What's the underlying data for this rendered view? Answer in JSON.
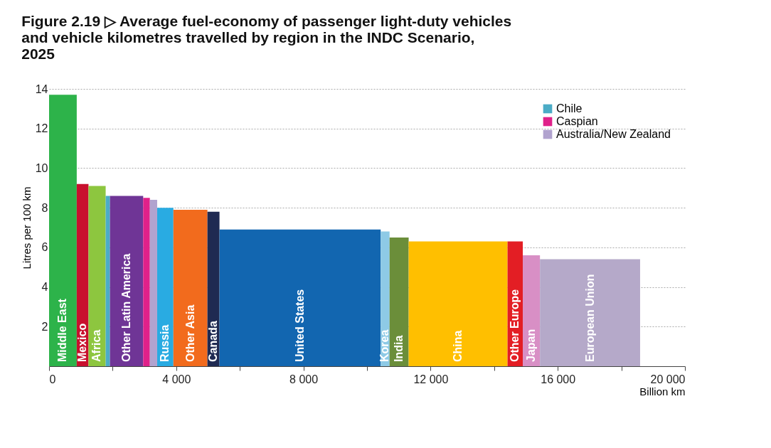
{
  "chart_data": {
    "type": "histogram",
    "title": "Figure 2.19 ▷ Average fuel-economy of passenger light-duty vehicles and vehicle kilometres travelled by region in the INDC Scenario, 2025",
    "xlabel": "Billion km",
    "ylabel": "Litres per 100 km",
    "categories": [
      "Middle East",
      "Mexico",
      "Africa",
      null,
      "Other Latin America",
      null,
      null,
      "Russia",
      "Other Asia",
      "Canada",
      "United States",
      "Korea",
      "India",
      "China",
      "Other Europe",
      "Japan",
      "European Union"
    ],
    "bins": [
      0,
      870,
      1240,
      1780,
      1910,
      2960,
      3170,
      3400,
      3910,
      4980,
      5360,
      10430,
      10710,
      11310,
      14420,
      14900,
      15440,
      18590
    ],
    "series": [
      {
        "colors": [
          "#2db34a",
          "#c8102e",
          "#8dc63f",
          null,
          "#6f3596",
          null,
          null,
          "#29abe2",
          "#f26b1d",
          "#1f2a52",
          "#1266b0",
          "#8ecae6",
          "#6b8e3a",
          "#ffbf00",
          "#e31e24",
          "#d88fc5",
          "#b5a9c9"
        ],
        "values": [
          13.7,
          9.2,
          9.1,
          null,
          8.6,
          null,
          null,
          8.0,
          7.9,
          7.8,
          6.9,
          6.8,
          6.5,
          6.3,
          6.3,
          5.6,
          5.4
        ]
      },
      {
        "name": "Chile",
        "color": "#4bacc6",
        "values": [
          null,
          null,
          null,
          8.6,
          null,
          null,
          null,
          null,
          null,
          null,
          null,
          null,
          null,
          null,
          null,
          null,
          null
        ]
      },
      {
        "name": "Caspian",
        "color": "#e0218a",
        "values": [
          null,
          null,
          null,
          null,
          null,
          8.5,
          null,
          null,
          null,
          null,
          null,
          null,
          null,
          null,
          null,
          null,
          null
        ]
      },
      {
        "name": "Australia/New Zealand",
        "color": "#b1a3cf",
        "values": [
          null,
          null,
          null,
          null,
          null,
          null,
          8.4,
          null,
          null,
          null,
          null,
          null,
          null,
          null,
          null,
          null,
          null
        ]
      }
    ],
    "xlim": [
      0,
      20000
    ],
    "xticks": [
      {
        "value": 0,
        "label": "0"
      },
      {
        "value": 2000,
        "label": null
      },
      {
        "value": 4000,
        "label": "4 000"
      },
      {
        "value": 6000,
        "label": null
      },
      {
        "value": 8000,
        "label": "8 000"
      },
      {
        "value": 10000,
        "label": null
      },
      {
        "value": 12000,
        "label": "12 000"
      },
      {
        "value": 14000,
        "label": null
      },
      {
        "value": 16000,
        "label": "16 000"
      },
      {
        "value": 18000,
        "label": null
      },
      {
        "value": 20000,
        "label": "20 000"
      }
    ],
    "ylim": [
      0,
      14
    ],
    "yticks": [
      2,
      4,
      6,
      8,
      10,
      12,
      14
    ],
    "grid": "y",
    "legend": "top right"
  }
}
